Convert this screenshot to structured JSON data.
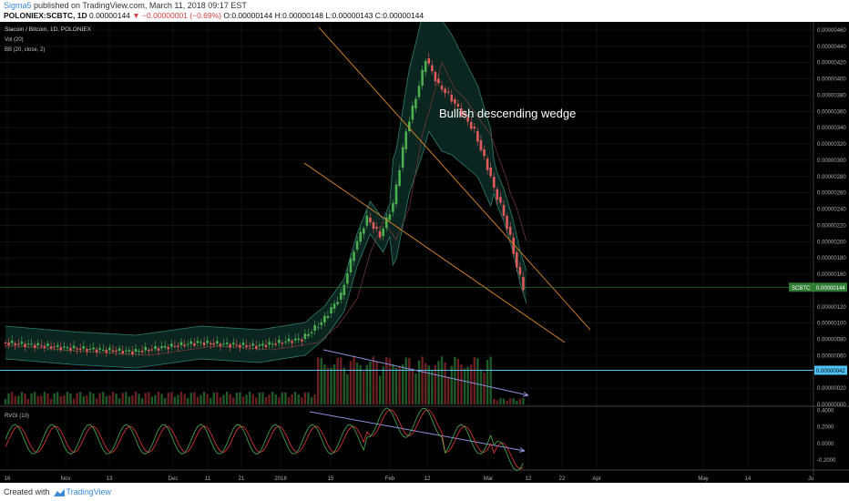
{
  "header": {
    "author": "Sigma5",
    "published": " published on TradingView.com, March 11, 2018 09:17 EST",
    "symbol": "POLONIEX:SCBTC, 1D",
    "last": " 0.00000144 ",
    "change": "▼ −0.00000001 (−0.69%)",
    "ohlc": " O:0.00000144 H:0.00000148 L:0.00000143 C:0.00000144"
  },
  "footer": {
    "created": "Created with",
    "brand": "TradingView"
  },
  "colors": {
    "background": "#000000",
    "up": "#4caf50",
    "down": "#e05a5a",
    "bands": "#2e7d6e",
    "bands_fill": "#0b2620",
    "wedge": "#e08a2a",
    "divergence": "#8c93dc",
    "price_line": "#2e7d32",
    "support": "#4fc3f7",
    "rvgi": "#4caf50",
    "rvgi_signal": "#e53935",
    "axis_text": "#b0b0b0"
  },
  "chart_data": {
    "type": "candlestick",
    "title": "Siacoin / Bitcoin, 1D, POLONIEX",
    "indicators": [
      "Vol (20)",
      "BB (20, close, 2)"
    ],
    "annotation": "Bullish descending wedge",
    "x_labels": [
      "16",
      "Nov",
      "13",
      "Dec",
      "11",
      "21",
      "2018",
      "15",
      "Feb",
      "12",
      "Mar",
      "12",
      "22",
      "Apr",
      "May",
      "14",
      "Ju"
    ],
    "y_ticks": [
      4.6e-06,
      4.4e-06,
      4.2e-06,
      4e-06,
      3.8e-06,
      3.6e-06,
      3.4e-06,
      3.2e-06,
      3e-06,
      2.8e-06,
      2.6e-06,
      2.4e-06,
      2.2e-06,
      2e-06,
      1.8e-06,
      1.6e-06,
      1.2e-06,
      1e-06,
      8e-07,
      6e-07,
      2e-07,
      0.0
    ],
    "y_tick_labels": [
      "0.00000460",
      "0.00000440",
      "0.00000420",
      "0.00000400",
      "0.00000380",
      "0.00000360",
      "0.00000340",
      "0.00000320",
      "0.00000300",
      "0.00000280",
      "0.00000260",
      "0.00000240",
      "0.00000220",
      "0.00000200",
      "0.00000180",
      "0.00000160",
      "0.00000120",
      "0.00000100",
      "0.00000080",
      "0.00000060",
      "0.00000020",
      "0.00000000"
    ],
    "ylim": [
      0.0,
      4.7e-06
    ],
    "last_price": 1.44e-06,
    "last_price_tag": "SCBTC",
    "last_price_label": "0.00000144",
    "support_level": 4.2e-07,
    "support_label": "0.00000042",
    "rvgi": {
      "name": "RVGI (10)",
      "ticks": [
        0.4,
        0.2,
        0.0,
        -0.2
      ],
      "tick_labels": [
        "0.4000",
        "0.2000",
        "0.0000",
        "-0.2000"
      ],
      "ylim": [
        -0.3,
        0.45
      ]
    }
  }
}
